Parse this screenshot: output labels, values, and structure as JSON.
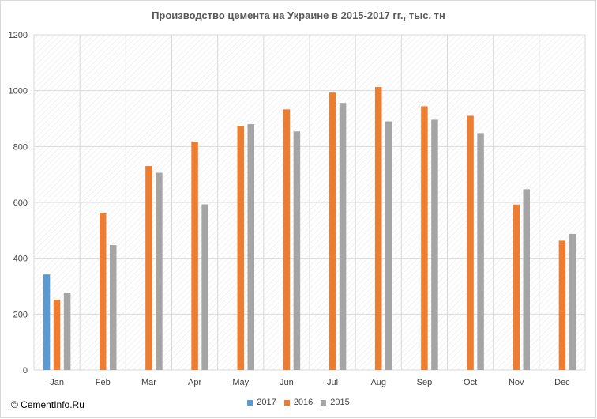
{
  "watermark": "© CementInfo.Ru",
  "chart_data": {
    "type": "bar",
    "title": "Производство цемента на Украине в 2015-2017 гг., тыс. тн",
    "xlabel": "",
    "ylabel": "",
    "categories": [
      "Jan",
      "Feb",
      "Mar",
      "Apr",
      "May",
      "Jun",
      "Jul",
      "Aug",
      "Sep",
      "Oct",
      "Nov",
      "Dec"
    ],
    "ylim": [
      0,
      1200
    ],
    "yticks": [
      0,
      200,
      400,
      600,
      800,
      1000,
      1200
    ],
    "grid": true,
    "legend_position": "bottom",
    "series": [
      {
        "name": "2017",
        "color": "#5b9bd5",
        "values": [
          342,
          null,
          null,
          null,
          null,
          null,
          null,
          null,
          null,
          null,
          null,
          null
        ]
      },
      {
        "name": "2016",
        "color": "#ed7d31",
        "values": [
          252,
          563,
          730,
          818,
          873,
          933,
          993,
          1013,
          944,
          910,
          592,
          463
        ]
      },
      {
        "name": "2015",
        "color": "#a5a5a5",
        "values": [
          277,
          447,
          706,
          593,
          880,
          854,
          956,
          890,
          896,
          848,
          647,
          487
        ]
      }
    ]
  }
}
